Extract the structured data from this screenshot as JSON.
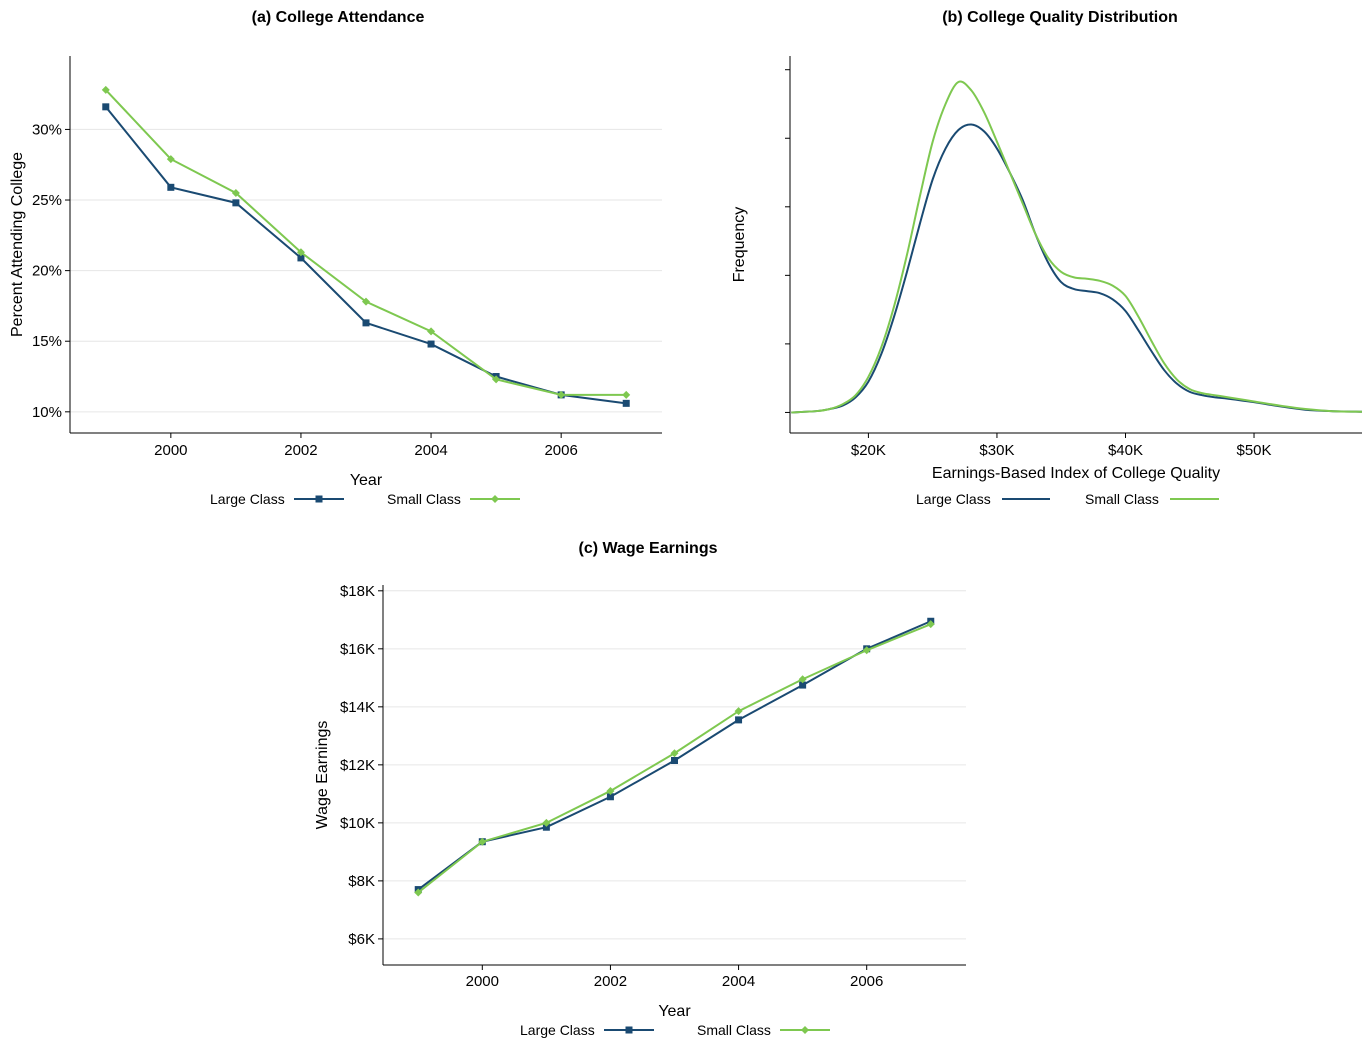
{
  "colors": {
    "large": "#1a4a72",
    "small": "#7ec850"
  },
  "chart_data": [
    {
      "id": "a",
      "type": "line",
      "title": "(a) College Attendance",
      "xlabel": "Year",
      "ylabel": "Percent Attending College",
      "x": [
        1999,
        2000,
        2001,
        2002,
        2003,
        2004,
        2005,
        2006,
        2007
      ],
      "xticks": [
        2000,
        2002,
        2004,
        2006
      ],
      "xtick_labels": [
        "2000",
        "2002",
        "2004",
        "2006"
      ],
      "yticks": [
        10,
        15,
        20,
        25,
        30
      ],
      "ytick_labels": [
        "10%",
        "15%",
        "20%",
        "25%",
        "30%"
      ],
      "xlim": [
        1998.45,
        2007.55
      ],
      "ylim": [
        8.5,
        35.2
      ],
      "grid": true,
      "legend": "bottom",
      "series": [
        {
          "name": "Large Class",
          "marker": "square",
          "values": [
            31.6,
            25.9,
            24.8,
            20.9,
            16.3,
            14.8,
            12.5,
            11.2,
            10.6
          ]
        },
        {
          "name": "Small Class",
          "marker": "diamond",
          "values": [
            32.8,
            27.9,
            25.5,
            21.3,
            17.8,
            15.7,
            12.3,
            11.2,
            11.2
          ]
        }
      ]
    },
    {
      "id": "b",
      "type": "line",
      "title": "(b) College Quality Distribution",
      "xlabel": "Earnings-Based Index of College Quality",
      "ylabel": "Frequency",
      "xticks": [
        20,
        30,
        40,
        50
      ],
      "xtick_labels": [
        "$20K",
        "$30K",
        "$40K",
        "$50K"
      ],
      "yticks": [
        0,
        1,
        2,
        3,
        4,
        5
      ],
      "ytick_labels": [
        "",
        "",
        "",
        "",
        "",
        ""
      ],
      "xlim": [
        13.9,
        58.4
      ],
      "ylim": [
        -0.3,
        5.2
      ],
      "grid": false,
      "legend": "bottom",
      "series": [
        {
          "name": "Large Class",
          "x": [
            14,
            16,
            17,
            18,
            19,
            20,
            21,
            22,
            23,
            24,
            25,
            26,
            27,
            28,
            29,
            30,
            31,
            32,
            33,
            34,
            35,
            36,
            37,
            38,
            39,
            40,
            41,
            42,
            43,
            44,
            45,
            46,
            47,
            48,
            50,
            52,
            54,
            56,
            58.4
          ],
          "values": [
            0,
            0.02,
            0.05,
            0.1,
            0.22,
            0.45,
            0.85,
            1.4,
            2.05,
            2.75,
            3.4,
            3.85,
            4.12,
            4.2,
            4.1,
            3.85,
            3.5,
            3.1,
            2.6,
            2.18,
            1.9,
            1.8,
            1.77,
            1.74,
            1.65,
            1.48,
            1.2,
            0.9,
            0.62,
            0.42,
            0.3,
            0.25,
            0.22,
            0.2,
            0.15,
            0.09,
            0.04,
            0.02,
            0.01
          ]
        },
        {
          "name": "Small Class",
          "x": [
            14,
            16,
            17,
            18,
            19,
            20,
            21,
            22,
            23,
            24,
            25,
            26,
            27,
            28,
            29,
            30,
            31,
            32,
            33,
            34,
            35,
            36,
            37,
            38,
            39,
            40,
            41,
            42,
            43,
            44,
            45,
            46,
            47,
            48,
            50,
            52,
            54,
            56,
            58.4
          ],
          "values": [
            0,
            0.02,
            0.05,
            0.12,
            0.25,
            0.52,
            0.95,
            1.55,
            2.3,
            3.15,
            3.95,
            4.5,
            4.82,
            4.7,
            4.38,
            3.95,
            3.5,
            3.05,
            2.6,
            2.25,
            2.05,
            1.97,
            1.95,
            1.92,
            1.85,
            1.7,
            1.4,
            1.05,
            0.72,
            0.48,
            0.34,
            0.28,
            0.25,
            0.22,
            0.16,
            0.1,
            0.05,
            0.02,
            0.01
          ]
        }
      ]
    },
    {
      "id": "c",
      "type": "line",
      "title": "(c) Wage Earnings",
      "xlabel": "Year",
      "ylabel": "Wage Earnings",
      "x": [
        1999,
        2000,
        2001,
        2002,
        2003,
        2004,
        2005,
        2006,
        2007
      ],
      "xticks": [
        2000,
        2002,
        2004,
        2006
      ],
      "xtick_labels": [
        "2000",
        "2002",
        "2004",
        "2006"
      ],
      "yticks": [
        6000,
        8000,
        10000,
        12000,
        14000,
        16000,
        18000
      ],
      "ytick_labels": [
        "$6K",
        "$8K",
        "$10K",
        "$12K",
        "$14K",
        "$16K",
        "$18K"
      ],
      "xlim": [
        1998.45,
        2007.55
      ],
      "ylim": [
        5100,
        18200
      ],
      "grid": true,
      "legend": "bottom",
      "series": [
        {
          "name": "Large Class",
          "marker": "square",
          "values": [
            7700,
            9350,
            9850,
            10900,
            12150,
            13550,
            14750,
            16000,
            16950
          ]
        },
        {
          "name": "Small Class",
          "marker": "diamond",
          "values": [
            7600,
            9350,
            10000,
            11100,
            12400,
            13850,
            14950,
            15950,
            16850
          ]
        }
      ]
    }
  ]
}
